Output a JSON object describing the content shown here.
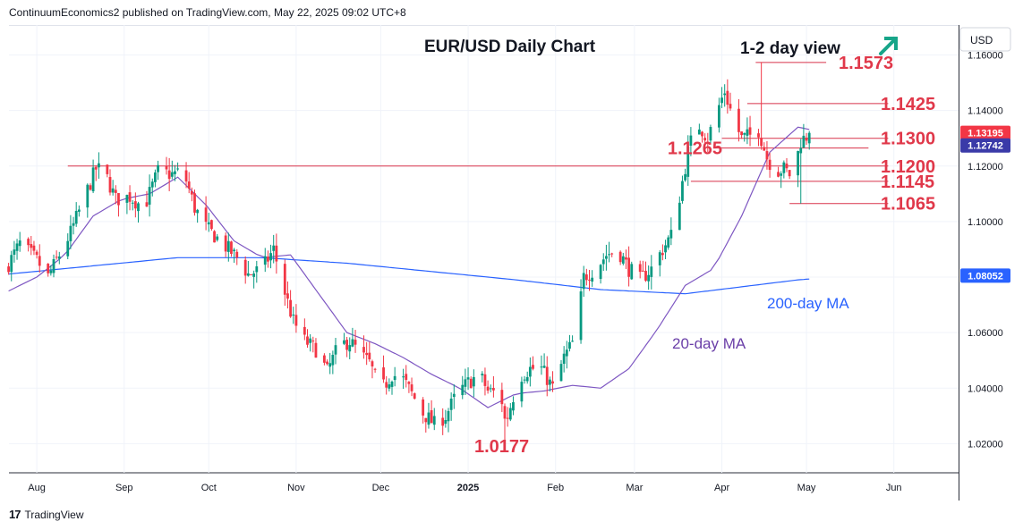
{
  "header": {
    "publisher_line": "ContinuumEconomics2 published on TradingView.com, May 22, 2025 09:02 UTC+8"
  },
  "footer": {
    "brand": "TradingView"
  },
  "chart_data": {
    "type": "candlestick",
    "title": "EUR/USD Daily Chart",
    "view_label": "1-2 day view",
    "currency": "USD",
    "y_ticks": [
      "1.16000",
      "1.14000",
      "1.12000",
      "1.10000",
      "1.08000",
      "1.06000",
      "1.04000",
      "1.02000"
    ],
    "x_ticks": [
      "Aug",
      "Sep",
      "Oct",
      "Nov",
      "Dec",
      "2025",
      "Feb",
      "Mar",
      "Apr",
      "May",
      "Jun"
    ],
    "price_tags": [
      {
        "label": "1.13195",
        "value": 1.13195,
        "color": "#f23645"
      },
      {
        "label": "1.12742",
        "value": 1.12742,
        "color": "#3a3aa8"
      },
      {
        "label": "1.08052",
        "value": 1.08052,
        "color": "#2962ff"
      }
    ],
    "levels": [
      {
        "label": "1.1573",
        "value": 1.1573,
        "from_day": 265,
        "to_day": 290
      },
      {
        "label": "1.1425",
        "value": 1.1425,
        "from_day": 262,
        "to_day": 312
      },
      {
        "label": "1.1300",
        "value": 1.13,
        "from_day": 253,
        "to_day": 312
      },
      {
        "label": "1.1265",
        "value": 1.1265,
        "from_day": 250,
        "to_day": 305
      },
      {
        "label": "1.1200",
        "value": 1.12,
        "from_day": 21,
        "to_day": 312
      },
      {
        "label": "1.1145",
        "value": 1.1145,
        "from_day": 242,
        "to_day": 312
      },
      {
        "label": "1.1065",
        "value": 1.1065,
        "from_day": 277,
        "to_day": 312
      }
    ],
    "low_label": {
      "label": "1.0177",
      "value": 1.0177
    },
    "ma_labels": {
      "ma200": "200-day MA",
      "ma20": "20-day MA"
    },
    "ma200": [
      [
        -1,
        1.081
      ],
      [
        60,
        1.087
      ],
      [
        90,
        1.087
      ],
      [
        120,
        1.085
      ],
      [
        150,
        1.082
      ],
      [
        180,
        1.079
      ],
      [
        210,
        1.0755
      ],
      [
        240,
        1.074
      ],
      [
        260,
        1.0765
      ],
      [
        280,
        1.079
      ],
      [
        300,
        1.0805
      ]
    ],
    "ma20": [
      [
        -1,
        1.0745
      ],
      [
        10,
        1.08
      ],
      [
        20,
        1.088
      ],
      [
        30,
        1.102
      ],
      [
        40,
        1.108
      ],
      [
        50,
        1.11
      ],
      [
        60,
        1.116
      ],
      [
        70,
        1.106
      ],
      [
        80,
        1.093
      ],
      [
        90,
        1.087
      ],
      [
        100,
        1.088
      ],
      [
        110,
        1.074
      ],
      [
        120,
        1.06
      ],
      [
        130,
        1.056
      ],
      [
        140,
        1.051
      ],
      [
        150,
        1.045
      ],
      [
        160,
        1.04
      ],
      [
        170,
        1.033
      ],
      [
        180,
        1.038
      ],
      [
        190,
        1.039
      ],
      [
        200,
        1.041
      ],
      [
        210,
        1.04
      ],
      [
        220,
        1.047
      ],
      [
        230,
        1.061
      ],
      [
        240,
        1.077
      ],
      [
        250,
        1.083
      ],
      [
        260,
        1.102
      ],
      [
        270,
        1.125
      ],
      [
        280,
        1.134
      ],
      [
        290,
        1.132
      ],
      [
        300,
        1.128
      ]
    ],
    "candles_anchor_close": [
      [
        -1,
        1.083
      ],
      [
        4,
        1.092
      ],
      [
        10,
        1.086
      ],
      [
        14,
        1.08
      ],
      [
        18,
        1.088
      ],
      [
        22,
        1.096
      ],
      [
        27,
        1.109
      ],
      [
        31,
        1.119
      ],
      [
        34,
        1.118
      ],
      [
        38,
        1.108
      ],
      [
        43,
        1.109
      ],
      [
        48,
        1.105
      ],
      [
        53,
        1.118
      ],
      [
        58,
        1.117
      ],
      [
        62,
        1.118
      ],
      [
        66,
        1.105
      ],
      [
        70,
        1.098
      ],
      [
        76,
        1.092
      ],
      [
        81,
        1.087
      ],
      [
        85,
        1.081
      ],
      [
        90,
        1.083
      ],
      [
        94,
        1.09
      ],
      [
        97,
        1.078
      ],
      [
        101,
        1.064
      ],
      [
        105,
        1.057
      ],
      [
        109,
        1.054
      ],
      [
        113,
        1.046
      ],
      [
        117,
        1.055
      ],
      [
        121,
        1.057
      ],
      [
        125,
        1.052
      ],
      [
        128,
        1.049
      ],
      [
        132,
        1.039
      ],
      [
        136,
        1.045
      ],
      [
        140,
        1.043
      ],
      [
        143,
        1.038
      ],
      [
        147,
        1.031
      ],
      [
        151,
        1.027
      ],
      [
        155,
        1.03
      ],
      [
        159,
        1.038
      ],
      [
        163,
        1.042
      ],
      [
        167,
        1.045
      ],
      [
        170,
        1.039
      ],
      [
        174,
        1.038
      ],
      [
        177,
        1.03
      ],
      [
        181,
        1.044
      ],
      [
        185,
        1.047
      ],
      [
        189,
        1.047
      ],
      [
        193,
        1.04
      ],
      [
        197,
        1.051
      ],
      [
        201,
        1.058
      ],
      [
        204,
        1.08
      ],
      [
        208,
        1.083
      ],
      [
        212,
        1.088
      ],
      [
        216,
        1.09
      ],
      [
        220,
        1.083
      ],
      [
        224,
        1.079
      ],
      [
        228,
        1.083
      ],
      [
        232,
        1.09
      ],
      [
        235,
        1.095
      ],
      [
        238,
        1.109
      ],
      [
        241,
        1.125
      ],
      [
        244,
        1.136
      ],
      [
        248,
        1.13
      ],
      [
        251,
        1.139
      ],
      [
        254,
        1.147
      ],
      [
        257,
        1.137
      ],
      [
        260,
        1.13
      ],
      [
        263,
        1.131
      ],
      [
        266,
        1.133
      ],
      [
        269,
        1.123
      ],
      [
        272,
        1.118
      ],
      [
        275,
        1.119
      ],
      [
        278,
        1.116
      ],
      [
        281,
        1.129
      ],
      [
        284,
        1.1315
      ]
    ],
    "axis_range": {
      "ymin": 1.0095,
      "ymax": 1.1708,
      "first_day": -1,
      "last_day": 284
    }
  }
}
